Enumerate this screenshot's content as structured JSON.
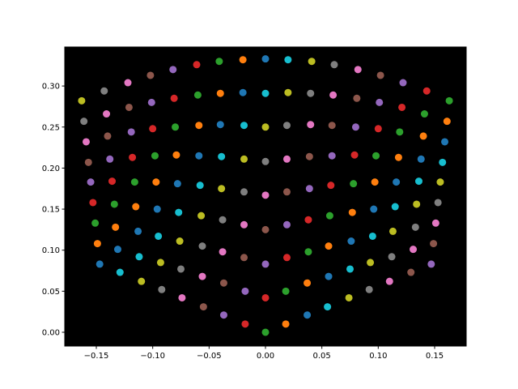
{
  "chart_data": {
    "type": "scatter",
    "background": "#000000",
    "palette": [
      "#1f77b4",
      "#ff7f0e",
      "#2ca02c",
      "#d62728",
      "#9467bd",
      "#8c564b",
      "#e377c2",
      "#7f7f7f",
      "#bcbd22",
      "#17becf"
    ],
    "xlim": [
      -0.178,
      0.178
    ],
    "ylim": [
      -0.0168,
      0.3475
    ],
    "xticks": [
      {
        "value": -0.15,
        "label": "−0.15"
      },
      {
        "value": -0.1,
        "label": "−0.10"
      },
      {
        "value": -0.05,
        "label": "−0.05"
      },
      {
        "value": 0,
        "label": "0.00"
      },
      {
        "value": 0.05,
        "label": "0.05"
      },
      {
        "value": 0.1,
        "label": "0.10"
      },
      {
        "value": 0.15,
        "label": "0.15"
      }
    ],
    "yticks": [
      {
        "value": 0,
        "label": "0.00"
      },
      {
        "value": 0.05,
        "label": "0.05"
      },
      {
        "value": 0.1,
        "label": "0.10"
      },
      {
        "value": 0.15,
        "label": "0.15"
      },
      {
        "value": 0.2,
        "label": "0.20"
      },
      {
        "value": 0.25,
        "label": "0.25"
      },
      {
        "value": 0.3,
        "label": "0.30"
      }
    ],
    "x": [
      -0.147,
      -0.149,
      -0.151,
      -0.153,
      -0.155,
      -0.157,
      -0.159,
      -0.161,
      -0.163,
      -0.129,
      -0.131,
      -0.133,
      -0.134,
      -0.136,
      -0.138,
      -0.14,
      -0.141,
      -0.143,
      -0.11,
      -0.112,
      -0.113,
      -0.115,
      -0.116,
      -0.118,
      -0.119,
      -0.121,
      -0.122,
      -0.092,
      -0.093,
      -0.095,
      -0.096,
      -0.097,
      -0.098,
      -0.1,
      -0.101,
      -0.102,
      -0.074,
      -0.075,
      -0.076,
      -0.077,
      -0.078,
      -0.079,
      -0.08,
      -0.081,
      -0.082,
      -0.055,
      -0.056,
      -0.056,
      -0.057,
      -0.058,
      -0.059,
      -0.059,
      -0.06,
      -0.061,
      -0.037,
      -0.037,
      -0.038,
      -0.038,
      -0.039,
      -0.039,
      -0.04,
      -0.04,
      -0.041,
      -0.018,
      -0.018,
      -0.019,
      -0.019,
      -0.019,
      -0.019,
      -0.019,
      -0.02,
      -0.02,
      0,
      0,
      0,
      0,
      0,
      0,
      0,
      0,
      0,
      0.018,
      0.018,
      0.019,
      0.019,
      0.019,
      0.019,
      0.019,
      0.02,
      0.02,
      0.037,
      0.037,
      0.038,
      0.038,
      0.039,
      0.039,
      0.04,
      0.04,
      0.041,
      0.055,
      0.056,
      0.056,
      0.057,
      0.058,
      0.059,
      0.059,
      0.06,
      0.061,
      0.074,
      0.075,
      0.076,
      0.077,
      0.078,
      0.079,
      0.08,
      0.081,
      0.082,
      0.092,
      0.093,
      0.095,
      0.096,
      0.097,
      0.098,
      0.1,
      0.101,
      0.102,
      0.11,
      0.112,
      0.113,
      0.115,
      0.116,
      0.118,
      0.119,
      0.121,
      0.122,
      0.129,
      0.131,
      0.133,
      0.134,
      0.136,
      0.138,
      0.14,
      0.141,
      0.143,
      0.147,
      0.149,
      0.151,
      0.153,
      0.155,
      0.157,
      0.159,
      0.161,
      0.163
    ],
    "values": [
      0.083,
      0.108,
      0.133,
      0.158,
      0.183,
      0.207,
      0.232,
      0.257,
      0.282,
      0.073,
      0.101,
      0.128,
      0.156,
      0.184,
      0.211,
      0.239,
      0.266,
      0.294,
      0.062,
      0.092,
      0.123,
      0.153,
      0.183,
      0.213,
      0.244,
      0.274,
      0.304,
      0.052,
      0.085,
      0.117,
      0.15,
      0.183,
      0.215,
      0.248,
      0.28,
      0.313,
      0.042,
      0.077,
      0.111,
      0.146,
      0.181,
      0.216,
      0.25,
      0.285,
      0.32,
      0.031,
      0.068,
      0.105,
      0.142,
      0.179,
      0.215,
      0.252,
      0.289,
      0.326,
      0.021,
      0.06,
      0.098,
      0.137,
      0.175,
      0.214,
      0.253,
      0.291,
      0.33,
      0.01,
      0.05,
      0.091,
      0.131,
      0.171,
      0.211,
      0.252,
      0.292,
      0.332,
      0,
      0.042,
      0.083,
      0.125,
      0.167,
      0.208,
      0.25,
      0.291,
      0.333,
      0.01,
      0.05,
      0.091,
      0.131,
      0.171,
      0.211,
      0.252,
      0.292,
      0.332,
      0.021,
      0.06,
      0.098,
      0.137,
      0.175,
      0.214,
      0.253,
      0.291,
      0.33,
      0.031,
      0.068,
      0.105,
      0.142,
      0.179,
      0.215,
      0.252,
      0.289,
      0.326,
      0.042,
      0.077,
      0.111,
      0.146,
      0.181,
      0.216,
      0.25,
      0.285,
      0.32,
      0.052,
      0.085,
      0.117,
      0.15,
      0.183,
      0.215,
      0.248,
      0.28,
      0.313,
      0.062,
      0.092,
      0.123,
      0.153,
      0.183,
      0.213,
      0.244,
      0.274,
      0.304,
      0.073,
      0.101,
      0.128,
      0.156,
      0.184,
      0.211,
      0.239,
      0.266,
      0.294,
      0.083,
      0.108,
      0.133,
      0.158,
      0.183,
      0.207,
      0.232,
      0.257,
      0.282
    ]
  }
}
